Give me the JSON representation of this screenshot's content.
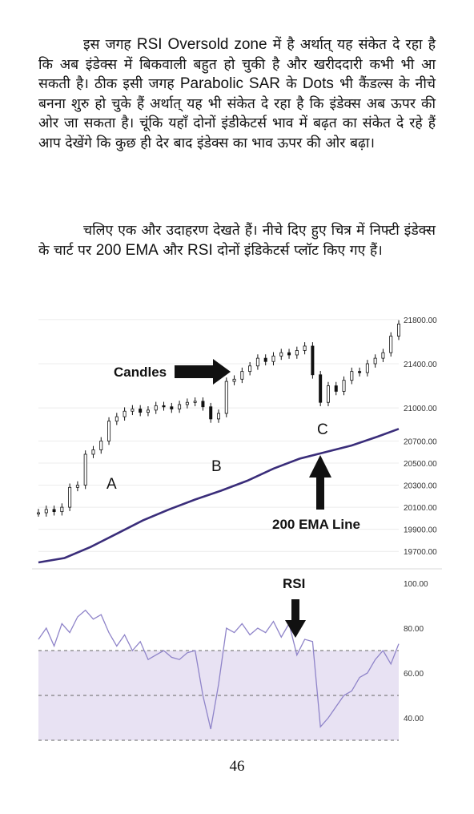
{
  "text": {
    "p1": [
      {
        "t": "इस जगह "
      },
      {
        "t": "RSI Oversold zone",
        "latin": true
      },
      {
        "t": " में है अर्थात् यह संकेत दे रहा है कि अब इंडेक्स में बिकवाली बहुत हो चुकी है और खरीददारी कभी भी आ सकती है। ठीक इसी जगह "
      },
      {
        "t": "Parabolic SAR",
        "latin": true
      },
      {
        "t": " के "
      },
      {
        "t": "Dots",
        "latin": true
      },
      {
        "t": " भी कैंडल्स के नीचे बनना शुरु हो चुके हैं अर्थात् यह भी संकेत दे रहा है कि इंडेक्स अब ऊपर की ओर जा सकता है। चूंकि यहाँ दोनों इंडीकेटर्स भाव में बढ़त का संकेत दे रहे हैं आप देखेंगे कि कुछ ही देर बाद इंडेक्स का भाव ऊपर की ओर बढ़ा।"
      }
    ],
    "p2": [
      {
        "t": "चलिए एक और उदाहरण देखते हैं। नीचे दिए हुए चित्र में निफ्टी इंडेक्स के चार्ट पर "
      },
      {
        "t": "200 EMA",
        "latin": true
      },
      {
        "t": " और "
      },
      {
        "t": "RSI",
        "latin": true
      },
      {
        "t": " दोनों इंडिकेटर्स प्लॉट किए गए हैं।"
      }
    ],
    "page_number": "46"
  },
  "chart_data": [
    {
      "type": "candlestick",
      "ylim": [
        19600,
        21850
      ],
      "y_ticks": [
        "21800.00",
        "21400.00",
        "21000.00",
        "20700.00",
        "20500.00",
        "20300.00",
        "20100.00",
        "19900.00",
        "19700.00"
      ],
      "annotations": {
        "candles": "Candles",
        "ema": "200 EMA Line",
        "point_a": "A",
        "point_b": "B",
        "point_c": "C"
      },
      "series": [
        {
          "x": [
            0,
            3,
            6,
            9,
            12,
            15,
            18,
            21,
            24,
            27,
            30,
            33,
            36,
            39,
            42,
            45,
            48,
            51,
            54,
            57,
            60,
            63,
            66,
            69,
            72,
            75,
            78,
            81,
            84,
            87,
            90,
            93,
            96,
            99,
            102,
            105,
            108,
            111,
            114,
            117,
            120,
            123,
            126,
            129,
            132,
            135,
            138
          ],
          "values": [
            20050,
            20080,
            20060,
            20100,
            20280,
            20300,
            20580,
            20620,
            20700,
            20880,
            20920,
            20970,
            20990,
            20960,
            20980,
            21020,
            21010,
            20990,
            21030,
            21050,
            21060,
            21010,
            20900,
            20950,
            21240,
            21260,
            21330,
            21380,
            21450,
            21420,
            21470,
            21500,
            21480,
            21520,
            21560,
            21300,
            21050,
            21200,
            21150,
            21250,
            21330,
            21320,
            21400,
            21450,
            21500,
            21650,
            21760
          ]
        },
        {
          "name": "200 EMA",
          "x": [
            0,
            10,
            20,
            30,
            40,
            50,
            60,
            70,
            80,
            90,
            100,
            110,
            120,
            130,
            138
          ],
          "values": [
            19600,
            19640,
            19740,
            19860,
            19980,
            20080,
            20170,
            20250,
            20340,
            20450,
            20540,
            20600,
            20660,
            20740,
            20810
          ]
        }
      ]
    },
    {
      "type": "line",
      "title": "RSI",
      "ylim": [
        30,
        100
      ],
      "y_ticks": [
        "100.00",
        "80.00",
        "60.00",
        "40.00"
      ],
      "series": [
        {
          "x": [
            0,
            3,
            6,
            9,
            12,
            15,
            18,
            21,
            24,
            27,
            30,
            33,
            36,
            39,
            42,
            45,
            48,
            51,
            54,
            57,
            60,
            63,
            66,
            69,
            72,
            75,
            78,
            81,
            84,
            87,
            90,
            93,
            96,
            99,
            102,
            105,
            108,
            111,
            114,
            117,
            120,
            123,
            126,
            129,
            132,
            135,
            138
          ],
          "values": [
            75,
            80,
            72,
            82,
            78,
            85,
            88,
            84,
            86,
            78,
            72,
            77,
            70,
            74,
            66,
            68,
            70,
            67,
            66,
            69,
            70,
            50,
            35,
            55,
            80,
            78,
            82,
            77,
            80,
            78,
            83,
            76,
            82,
            68,
            75,
            74,
            36,
            40,
            45,
            50,
            52,
            58,
            60,
            66,
            70,
            64,
            73
          ]
        }
      ]
    }
  ]
}
